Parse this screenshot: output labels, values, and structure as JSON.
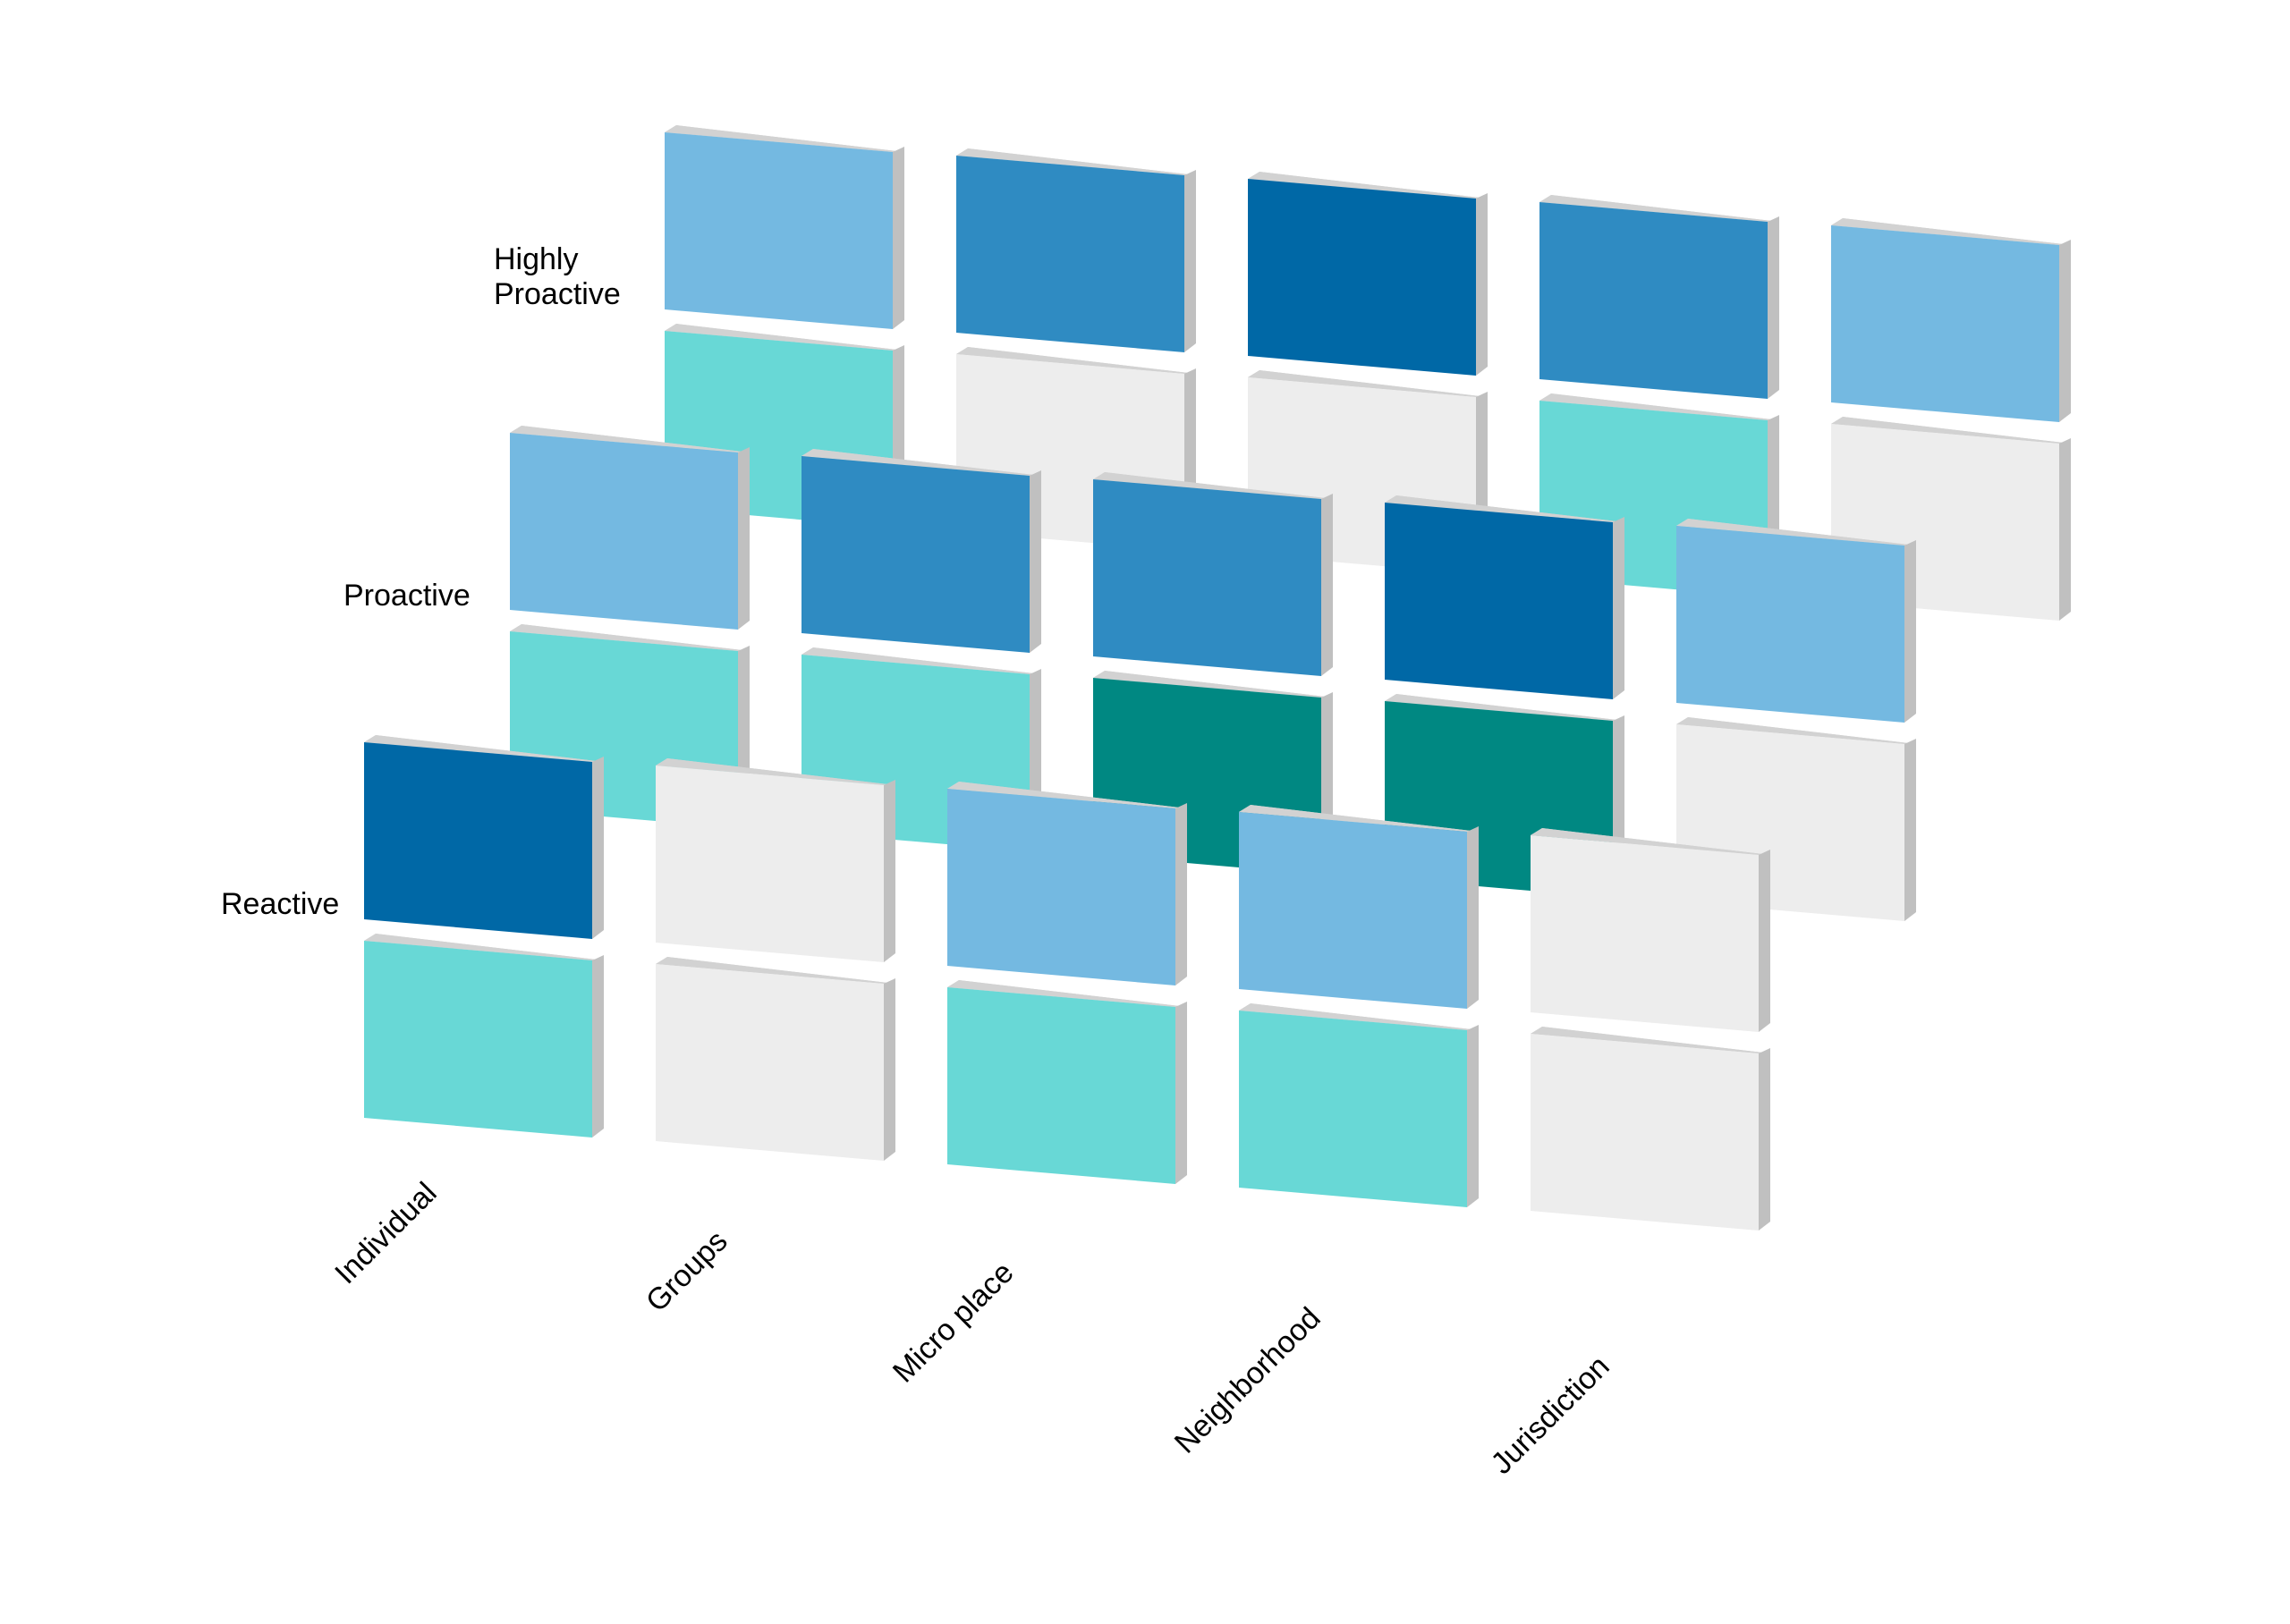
{
  "colors": {
    "light_blue": "#74B9E1",
    "mid_blue": "#2F8BC2",
    "dark_blue": "#0068A6",
    "turquoise": "#68D8D6",
    "teal": "#008882",
    "light_gray": "#EDEDED",
    "side_face": "#C0C0C0",
    "top_face": "#D2D2D2"
  },
  "rows": [
    {
      "label_lines": [
        "Highly",
        "Proactive"
      ]
    },
    {
      "label_lines": [
        "Proactive"
      ]
    },
    {
      "label_lines": [
        "Reactive"
      ]
    }
  ],
  "columns": [
    "Individual",
    "Groups",
    "Micro place",
    "Neighborhood",
    "Jurisdiction"
  ],
  "cells": [
    [
      {
        "upper": "light_blue",
        "lower": "turquoise"
      },
      {
        "upper": "mid_blue",
        "lower": "light_gray"
      },
      {
        "upper": "dark_blue",
        "lower": "light_gray"
      },
      {
        "upper": "mid_blue",
        "lower": "turquoise"
      },
      {
        "upper": "light_blue",
        "lower": "light_gray"
      }
    ],
    [
      {
        "upper": "light_blue",
        "lower": "turquoise"
      },
      {
        "upper": "mid_blue",
        "lower": "turquoise"
      },
      {
        "upper": "mid_blue",
        "lower": "teal"
      },
      {
        "upper": "dark_blue",
        "lower": "teal"
      },
      {
        "upper": "light_blue",
        "lower": "light_gray"
      }
    ],
    [
      {
        "upper": "dark_blue",
        "lower": "turquoise"
      },
      {
        "upper": "light_gray",
        "lower": "light_gray"
      },
      {
        "upper": "light_blue",
        "lower": "turquoise"
      },
      {
        "upper": "light_blue",
        "lower": "turquoise"
      },
      {
        "upper": "light_gray",
        "lower": "light_gray"
      }
    ]
  ]
}
